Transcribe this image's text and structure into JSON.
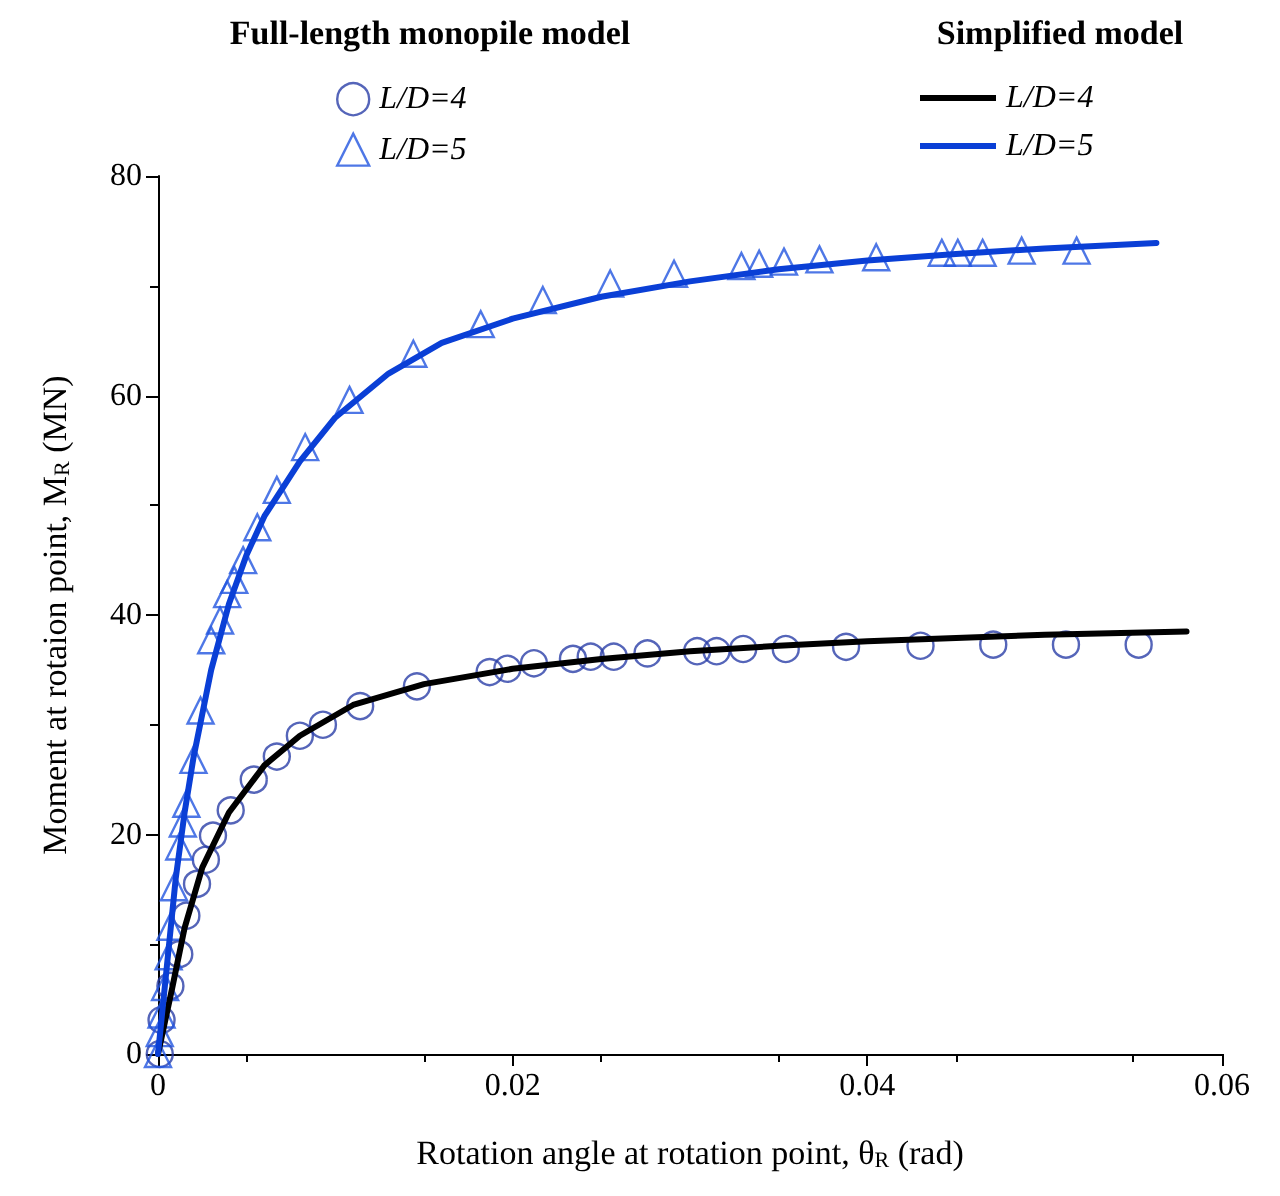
{
  "chart_data": {
    "type": "scatter",
    "xlabel": "Rotation angle at rotation point, θ$_{R}$ (rad)",
    "ylabel": "Moment at rotaion point, M$_{R}$ (MN)",
    "annotations": [
      "Full-length monopile model",
      "Simplified model"
    ],
    "xlim": [
      0,
      0.06
    ],
    "xticks": [
      0,
      0.02,
      0.04,
      0.06
    ],
    "ylim": [
      0,
      80
    ],
    "yticks": [
      0,
      20,
      40,
      60,
      80
    ],
    "grid": false,
    "legend": "top",
    "series": [
      {
        "name": "L/D=4",
        "marker": "circle",
        "color": "#2a3fa8",
        "x": [
          0.0001,
          0.0002,
          0.0007,
          0.0012,
          0.0016,
          0.0022,
          0.0027,
          0.0031,
          0.0041,
          0.0054,
          0.0067,
          0.008,
          0.0093,
          0.0114,
          0.0146,
          0.0187,
          0.0197,
          0.0212,
          0.0234,
          0.0244,
          0.0257,
          0.0276,
          0.0304,
          0.0315,
          0.033,
          0.0354,
          0.0388,
          0.043,
          0.0471,
          0.0512,
          0.0553
        ],
        "values": [
          0,
          3.1,
          6.2,
          9.1,
          12.6,
          15.5,
          17.7,
          19.9,
          22.2,
          25,
          27.1,
          29,
          30,
          31.7,
          33.5,
          34.8,
          35.1,
          35.6,
          36,
          36.2,
          36.2,
          36.5,
          36.7,
          36.7,
          36.9,
          36.9,
          37.1,
          37.2,
          37.3,
          37.3,
          37.3
        ]
      },
      {
        "name": "L/D=5",
        "marker": "triangle",
        "color": "#2255e0",
        "x": [
          0,
          0.0001,
          0.0002,
          0.0004,
          0.0006,
          0.0007,
          0.0009,
          0.0012,
          0.0014,
          0.0016,
          0.002,
          0.0024,
          0.003,
          0.0035,
          0.0039,
          0.0043,
          0.0048,
          0.0056,
          0.0067,
          0.0083,
          0.0108,
          0.0144,
          0.0182,
          0.0217,
          0.0255,
          0.0291,
          0.0329,
          0.0339,
          0.0353,
          0.0373,
          0.0405,
          0.0442,
          0.0451,
          0.0465,
          0.0487,
          0.0518
        ],
        "values": [
          0,
          1.9,
          3.6,
          6.1,
          8.9,
          11.6,
          15.2,
          18.9,
          21,
          22.8,
          26.8,
          31.3,
          37.7,
          39.5,
          41.9,
          43.2,
          45,
          48,
          51.4,
          55.3,
          59.6,
          63.8,
          66.5,
          68.7,
          70.2,
          71.1,
          71.8,
          72,
          72.2,
          72.4,
          72.6,
          73,
          73,
          73,
          73.2,
          73.2
        ]
      },
      {
        "name": "L/D=4",
        "type": "line",
        "marker": "none",
        "color": "#000000",
        "x": [
          0,
          0.0008,
          0.0015,
          0.0025,
          0.004,
          0.006,
          0.008,
          0.011,
          0.015,
          0.02,
          0.025,
          0.03,
          0.035,
          0.04,
          0.045,
          0.05,
          0.058
        ],
        "values": [
          0,
          6,
          11.5,
          17,
          22,
          26.3,
          29,
          31.8,
          33.7,
          35.1,
          36,
          36.7,
          37.2,
          37.6,
          37.9,
          38.2,
          38.5
        ]
      },
      {
        "name": "L/D=5",
        "type": "line",
        "marker": "none",
        "color": "#0a3fd6",
        "x": [
          0,
          0.0005,
          0.001,
          0.0015,
          0.002,
          0.003,
          0.004,
          0.005,
          0.006,
          0.008,
          0.01,
          0.013,
          0.016,
          0.02,
          0.025,
          0.03,
          0.035,
          0.04,
          0.045,
          0.05,
          0.0563
        ],
        "values": [
          0,
          8,
          16,
          22,
          27,
          35,
          41,
          45.5,
          49,
          54,
          58,
          62,
          64.8,
          67,
          69,
          70.4,
          71.5,
          72.3,
          72.9,
          73.4,
          73.9
        ]
      }
    ]
  }
}
